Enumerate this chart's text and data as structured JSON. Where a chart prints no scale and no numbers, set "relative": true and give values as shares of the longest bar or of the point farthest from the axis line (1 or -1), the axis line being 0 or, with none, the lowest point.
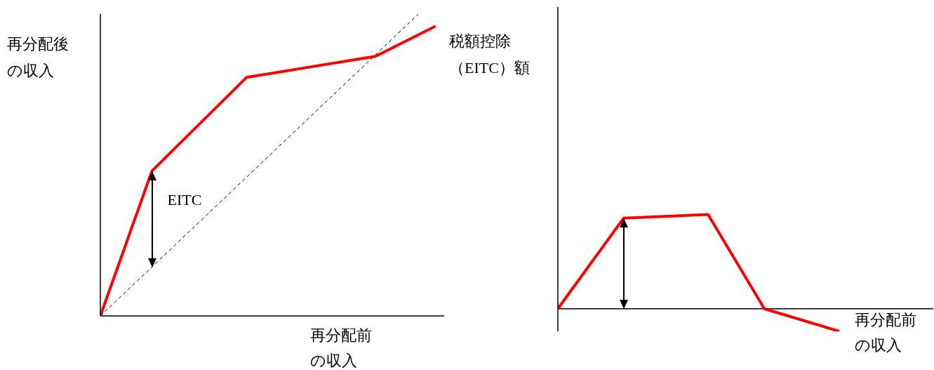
{
  "chart_data": [
    {
      "type": "line",
      "relative": true,
      "ylabel": "再分配後の収入",
      "xlabel": "再分配前の収入",
      "annotations": [
        "EITC"
      ],
      "marker": "none",
      "categories": [
        null,
        null,
        null,
        null,
        null,
        null,
        null,
        null,
        null,
        null,
        null,
        null,
        null,
        null,
        null,
        null,
        null,
        null,
        null,
        null,
        null,
        null,
        null,
        null,
        null,
        null,
        null,
        null,
        null,
        null,
        null,
        null,
        null,
        null,
        null,
        null,
        null,
        null,
        null,
        null,
        null
      ],
      "series": [
        {
          "color": "#ff0000",
          "values": [
            0,
            null,
            null,
            null,
            null,
            null,
            0.48,
            null,
            null,
            null,
            null,
            null,
            null,
            null,
            null,
            null,
            null,
            0.79,
            null,
            null,
            null,
            null,
            null,
            null,
            null,
            null,
            null,
            null,
            null,
            null,
            null,
            null,
            0.86,
            null,
            null,
            null,
            null,
            null,
            null,
            0.96,
            null
          ],
          "line_style": "solid"
        },
        {
          "color": "#000000",
          "values": [
            0,
            null,
            null,
            null,
            null,
            null,
            null,
            null,
            null,
            null,
            null,
            null,
            null,
            null,
            null,
            null,
            null,
            null,
            null,
            null,
            null,
            null,
            null,
            null,
            null,
            null,
            null,
            null,
            null,
            null,
            null,
            null,
            null,
            null,
            null,
            null,
            null,
            1,
            null,
            null,
            null
          ],
          "line_style": "dashed"
        }
      ]
    },
    {
      "type": "line",
      "relative": true,
      "ylabel": "税額控除（EITC）額",
      "xlabel": "再分配前の収入",
      "marker": "none",
      "categories": [
        null,
        null,
        null,
        null,
        null,
        null,
        null,
        null,
        null,
        null,
        null,
        null,
        null,
        null,
        null,
        null,
        null,
        null,
        null,
        null,
        null,
        null,
        null,
        null,
        null,
        null,
        null,
        null,
        null,
        null,
        null,
        null,
        null,
        null,
        null,
        null,
        null,
        null,
        null,
        null,
        null
      ],
      "series": [
        {
          "color": "#ff0000",
          "values": [
            0,
            null,
            null,
            null,
            null,
            null,
            null,
            0.96,
            null,
            null,
            null,
            null,
            null,
            null,
            null,
            null,
            1,
            null,
            null,
            null,
            null,
            null,
            0,
            null,
            null,
            null,
            null,
            null,
            null,
            null,
            -0.24,
            null,
            null,
            null,
            null,
            null,
            null,
            null,
            null,
            null,
            null
          ],
          "line_style": "solid"
        }
      ]
    }
  ]
}
